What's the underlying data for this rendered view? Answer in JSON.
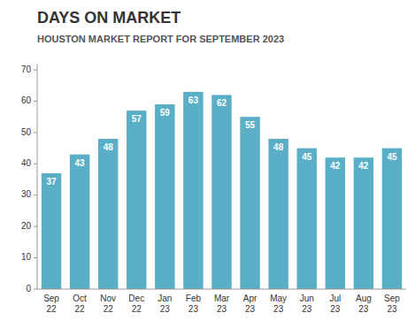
{
  "chart_data": {
    "type": "bar",
    "title": "DAYS ON MARKET",
    "subtitle": "HOUSTON MARKET REPORT FOR SEPTEMBER 2023",
    "categories": [
      "Sep\n22",
      "Oct\n22",
      "Nov\n22",
      "Dec\n22",
      "Jan\n23",
      "Feb\n23",
      "Mar\n23",
      "Apr\n23",
      "May\n23",
      "Jun\n23",
      "Jul\n23",
      "Aug\n23",
      "Sep\n23"
    ],
    "values": [
      37,
      43,
      48,
      57,
      59,
      63,
      62,
      55,
      48,
      45,
      42,
      42,
      45
    ],
    "color": "#5aafc7",
    "ylim": [
      0,
      72
    ],
    "yticks": [
      0,
      10,
      20,
      30,
      40,
      50,
      60,
      70
    ],
    "grid": false,
    "data_labels": true
  }
}
